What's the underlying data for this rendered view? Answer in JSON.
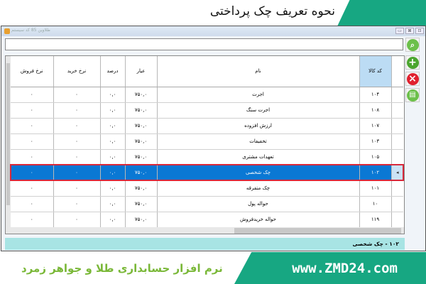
{
  "header_banner": {
    "title": "نحوه تعریف چک پرداختی"
  },
  "window": {
    "title": "طلاوین 85  کد سیستم",
    "buttons": [
      "▭",
      "⊠",
      "⊡"
    ]
  },
  "search": {
    "value": "",
    "placeholder": ""
  },
  "colors": {
    "brand_green": "#17a782",
    "selection": "#0a78d4",
    "status_bg": "#a8e4e4"
  },
  "grid": {
    "columns": [
      "نرخ فروش",
      "نرخ خرید",
      "درصد",
      "عیار",
      "نام",
      "کد کالا"
    ],
    "rows": [
      [
        "۰",
        "۰",
        "۰,۰",
        "۷۵۰,۰",
        "اجرت",
        "۱۰۴"
      ],
      [
        "۰",
        "۰",
        "۰,۰",
        "۷۵۰,۰",
        "اجرت سنگ",
        "۱۰۸"
      ],
      [
        "۰",
        "۰",
        "۰,۰",
        "۷۵۰,۰",
        "ارزش افزوده",
        "۱۰۷"
      ],
      [
        "۰",
        "۰",
        "۰,۰",
        "۷۵۰,۰",
        "تخفیفات",
        "۱۰۳"
      ],
      [
        "۰",
        "۰",
        "۰,۰",
        "۷۵۰,۰",
        "تعهدات مشتری",
        "۱۰۵"
      ],
      [
        "۰",
        "۰",
        "۰,۰",
        "۷۵۰,۰",
        "چک شخصی",
        "۱۰۲"
      ],
      [
        "۰",
        "۰",
        "۰,۰",
        "۷۵۰,۰",
        "چک متفرقه",
        "۱۰۱"
      ],
      [
        "۰",
        "۰",
        "۰,۰",
        "۷۵۰,۰",
        "حواله پول",
        "۱۰"
      ],
      [
        "۰",
        "۰",
        "۰,۰",
        "۷۵۰,۰",
        "حواله خریدفروش",
        "۱۱۹"
      ]
    ],
    "selected_index": 5,
    "row_indicator": "◂"
  },
  "side_buttons": {
    "search": "search-icon",
    "add": "+",
    "delete": "×",
    "print": "print-icon"
  },
  "status": {
    "text": "۱۰۲ - چک شخصی"
  },
  "footer_banner": {
    "url": "www.ZMD24.com",
    "slogan": "نرم افزار حسابداری طلا و جواهر زمرد"
  }
}
